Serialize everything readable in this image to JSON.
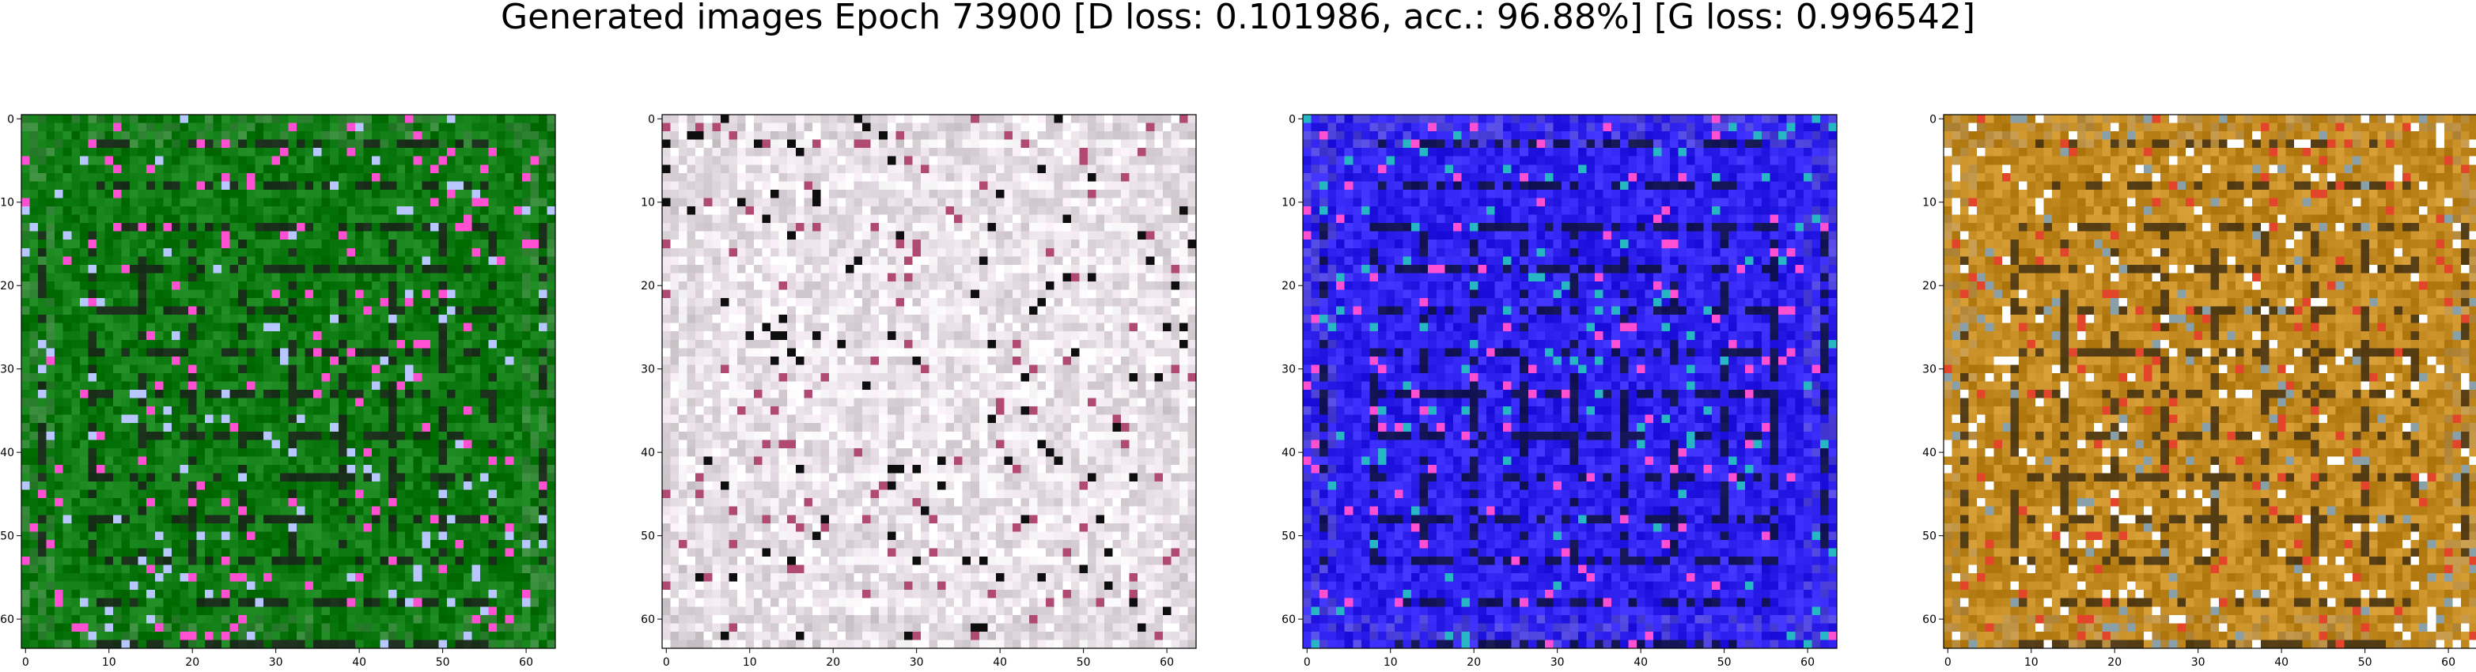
{
  "figure": {
    "title": "Generated images Epoch 73900 [D loss: 0.101986, acc.: 96.88%] [G loss: 0.996542]"
  },
  "chart_data": [
    {
      "type": "heatmap",
      "panel": "generated-image-1",
      "dominant_color": "#0c7a10",
      "accent_colors": [
        "#ff4fd2",
        "#1c1c1c",
        "#b8c7ff"
      ],
      "x_ticks": [
        "0",
        "10",
        "20",
        "30",
        "40",
        "50",
        "60"
      ],
      "y_ticks": [
        "0",
        "10",
        "20",
        "30",
        "40",
        "50",
        "60"
      ],
      "xlim": [
        -0.5,
        63.5
      ],
      "ylim": [
        63.5,
        -0.5
      ],
      "grid": false
    },
    {
      "type": "heatmap",
      "panel": "generated-image-2",
      "dominant_color": "#e6dde4",
      "accent_colors": [
        "#0e0e0e",
        "#ffffff",
        "#b04a72"
      ],
      "x_ticks": [
        "0",
        "10",
        "20",
        "30",
        "40",
        "50",
        "60"
      ],
      "y_ticks": [
        "0",
        "10",
        "20",
        "30",
        "40",
        "50",
        "60"
      ],
      "xlim": [
        -0.5,
        63.5
      ],
      "ylim": [
        63.5,
        -0.5
      ],
      "grid": false
    },
    {
      "type": "heatmap",
      "panel": "generated-image-3",
      "dominant_color": "#2f22ee",
      "accent_colors": [
        "#27b6c4",
        "#0b1030",
        "#ff4fd2"
      ],
      "x_ticks": [
        "0",
        "10",
        "20",
        "30",
        "40",
        "50",
        "60"
      ],
      "y_ticks": [
        "0",
        "10",
        "20",
        "30",
        "40",
        "50",
        "60"
      ],
      "xlim": [
        -0.5,
        63.5
      ],
      "ylim": [
        63.5,
        -0.5
      ],
      "grid": false
    },
    {
      "type": "heatmap",
      "panel": "generated-image-4",
      "dominant_color": "#c48a22",
      "accent_colors": [
        "#e2452a",
        "#3a2a10",
        "#8aa0a8"
      ],
      "x_ticks": [
        "0",
        "10",
        "20",
        "30",
        "40",
        "50",
        "60"
      ],
      "y_ticks": [
        "0",
        "10",
        "20",
        "30",
        "40",
        "50",
        "60"
      ],
      "xlim": [
        -0.5,
        63.5
      ],
      "ylim": [
        63.5,
        -0.5
      ],
      "grid": false
    }
  ]
}
